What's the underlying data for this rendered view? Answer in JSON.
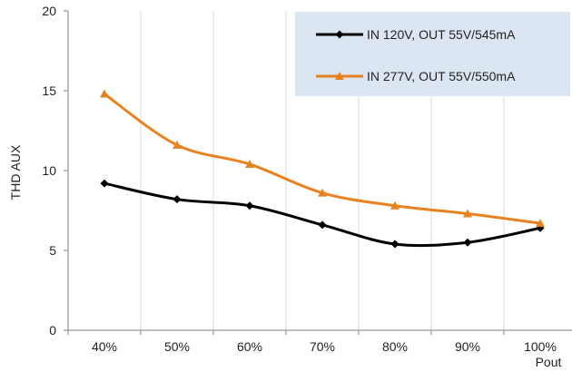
{
  "chart_data": {
    "type": "line",
    "categories": [
      "40%",
      "50%",
      "60%",
      "70%",
      "80%",
      "90%",
      "100%"
    ],
    "series": [
      {
        "name": "IN 120V, OUT 55V/545mA",
        "values": [
          9.2,
          8.2,
          7.8,
          6.6,
          5.4,
          5.5,
          6.4
        ],
        "color": "#000000",
        "marker": "diamond"
      },
      {
        "name": "IN 277V, OUT 55V/550mA",
        "values": [
          14.8,
          11.6,
          10.4,
          8.6,
          7.8,
          7.3,
          6.7
        ],
        "color": "#E8821E",
        "marker": "triangle"
      }
    ],
    "title": "",
    "xlabel": "Pout",
    "ylabel": "THD AUX",
    "ylim": [
      0,
      20
    ],
    "yticks": [
      0,
      5,
      10,
      15,
      20
    ],
    "grid": "vertical",
    "legend": {
      "position": "top-right",
      "background": "#DCE6F2"
    },
    "smooth": true
  }
}
